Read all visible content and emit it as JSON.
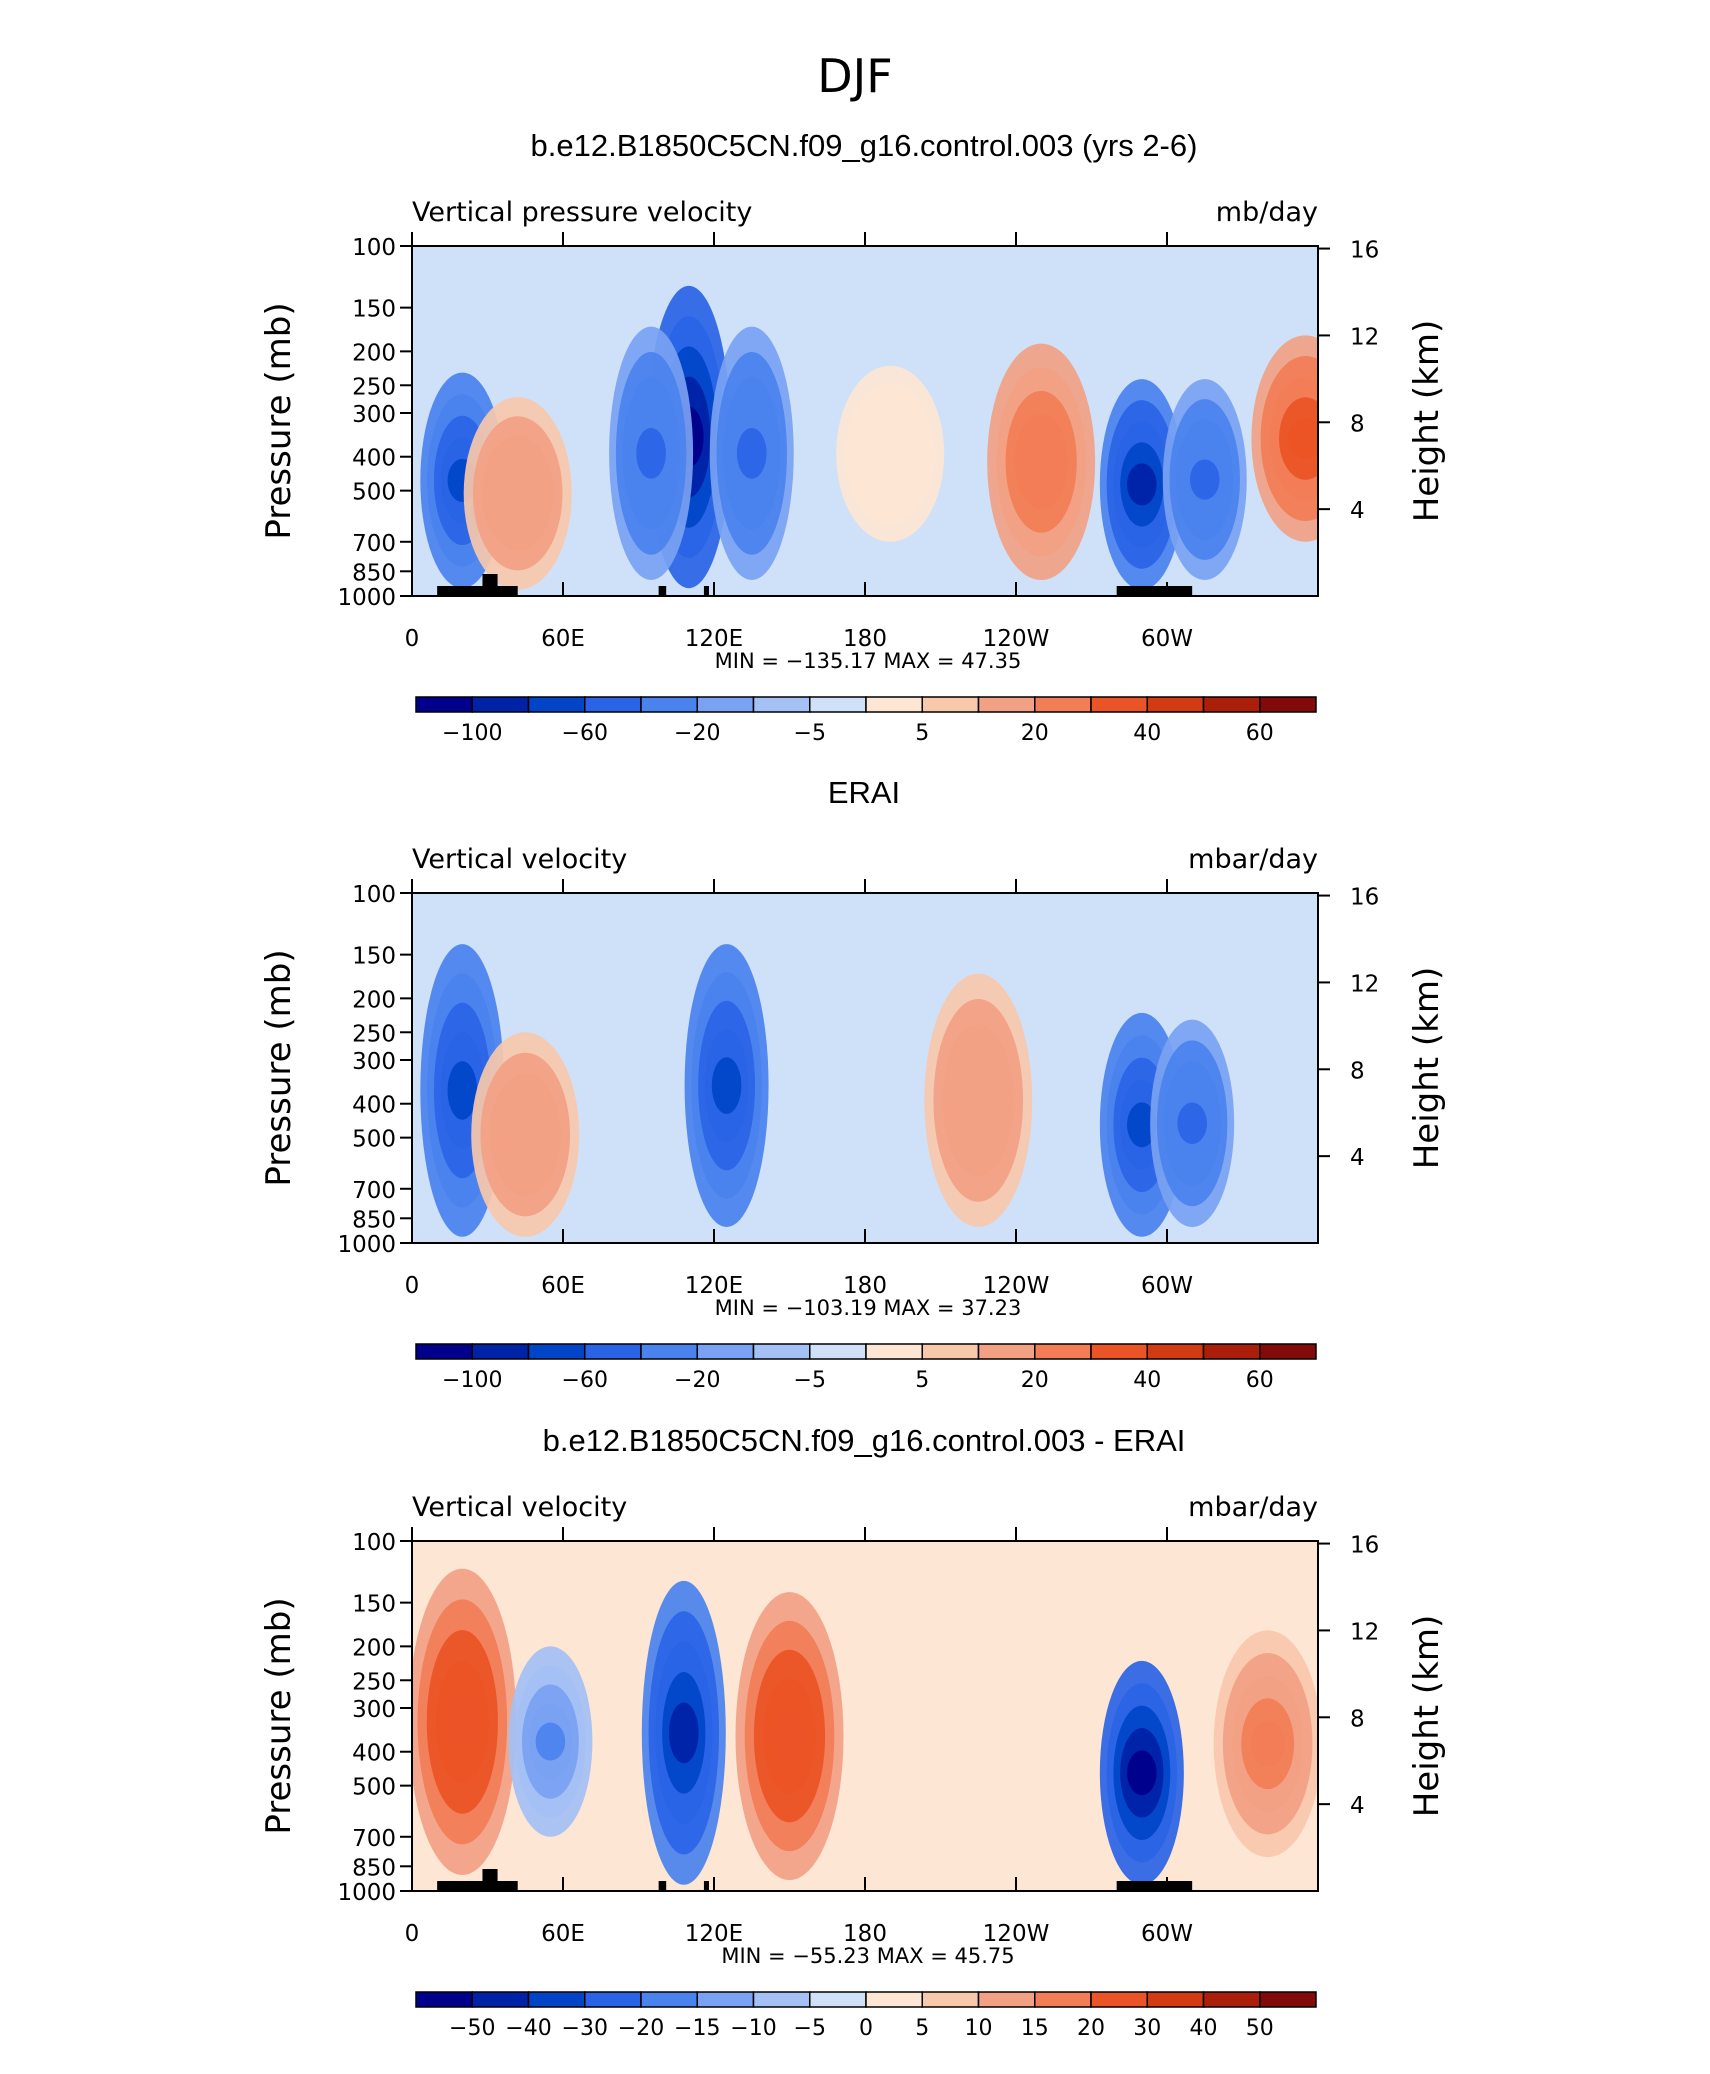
{
  "figure_title": "DJF",
  "panels": [
    {
      "title": "b.e12.B1850C5CN.f09_g16.control.003 (yrs 2-6)",
      "left_label": "Vertical pressure velocity",
      "right_label": "mb/day",
      "stats": "MIN = −135.17   MAX =   47.35",
      "colorbar_labels": [
        "−100",
        "−60",
        "−20",
        "−5",
        "5",
        "20",
        "40",
        "60"
      ],
      "label_boxes": [
        1,
        3,
        5,
        7,
        9,
        11,
        13,
        15
      ],
      "topo": true
    },
    {
      "title": "ERAI",
      "left_label": "Vertical velocity",
      "right_label": "mbar/day",
      "stats": "MIN = −103.19   MAX =   37.23",
      "colorbar_labels": [
        "−100",
        "−60",
        "−20",
        "−5",
        "5",
        "20",
        "40",
        "60"
      ],
      "label_boxes": [
        1,
        3,
        5,
        7,
        9,
        11,
        13,
        15
      ],
      "topo": false
    },
    {
      "title": "b.e12.B1850C5CN.f09_g16.control.003 - ERAI",
      "left_label": "Vertical velocity",
      "right_label": "mbar/day",
      "stats": "MIN = −55.23   MAX =   45.75",
      "colorbar_labels": [
        "−50",
        "−40",
        "−30",
        "−20",
        "−15",
        "−10",
        "−5",
        "0",
        "5",
        "10",
        "15",
        "20",
        "30",
        "40",
        "50"
      ],
      "label_boxes": [
        1,
        2,
        3,
        4,
        5,
        6,
        7,
        8,
        9,
        10,
        11,
        12,
        13,
        14,
        15
      ],
      "topo": true
    }
  ],
  "axis": {
    "y_left_label": "Pressure (mb)",
    "y_left_ticks": [
      100,
      150,
      200,
      250,
      300,
      400,
      500,
      700,
      850,
      1000
    ],
    "y_right_label": "Height (km)",
    "y_right_ticks": [
      16,
      12,
      8,
      4
    ],
    "x_ticks": [
      "0",
      "60E",
      "120E",
      "180",
      "120W",
      "60W"
    ]
  },
  "colors": {
    "palette": [
      "#00008c",
      "#0022a6",
      "#0044c8",
      "#2a64e6",
      "#4a82ee",
      "#7aa2f2",
      "#a4c0f4",
      "#cfe1f9",
      "#fde6d3",
      "#f8c8ab",
      "#f2a184",
      "#f27d56",
      "#eb5426",
      "#d23a12",
      "#aa1e0a",
      "#820a0a"
    ]
  },
  "chart_data": [
    {
      "type": "heatmap",
      "title": "b.e12.B1850C5CN.f09_g16.control.003 (yrs 2-6)",
      "variable": "Vertical pressure velocity",
      "units": "mb/day",
      "x_ticks": [
        "0",
        "60E",
        "120E",
        "180",
        "120W",
        "60W"
      ],
      "xlim": [
        0,
        360
      ],
      "y_axis": "Pressure (mb)",
      "ylim": [
        1000,
        100
      ],
      "y_scale": "log",
      "contour_levels": [
        -100,
        -80,
        -60,
        -40,
        -20,
        -10,
        -5,
        0,
        5,
        10,
        20,
        30,
        40,
        50,
        60
      ],
      "features": [
        {
          "lon": 20,
          "p_top": 230,
          "p_bot": 950,
          "value": -60
        },
        {
          "lon": 42,
          "p_top": 270,
          "p_bot": 960,
          "value": 20
        },
        {
          "lon": 110,
          "p_top": 130,
          "p_bot": 950,
          "value": -100
        },
        {
          "lon": 95,
          "p_top": 170,
          "p_bot": 900,
          "value": -40
        },
        {
          "lon": 135,
          "p_top": 170,
          "p_bot": 900,
          "value": -40
        },
        {
          "lon": 190,
          "p_top": 220,
          "p_bot": 700,
          "value": 5
        },
        {
          "lon": 250,
          "p_top": 190,
          "p_bot": 900,
          "value": 30
        },
        {
          "lon": 290,
          "p_top": 240,
          "p_bot": 960,
          "value": -80
        },
        {
          "lon": 315,
          "p_top": 240,
          "p_bot": 900,
          "value": -40
        },
        {
          "lon": 355,
          "p_top": 180,
          "p_bot": 700,
          "value": 40
        }
      ],
      "min": -135.17,
      "max": 47.35
    },
    {
      "type": "heatmap",
      "title": "ERAI",
      "variable": "Vertical velocity",
      "units": "mbar/day",
      "x_ticks": [
        "0",
        "60E",
        "120E",
        "180",
        "120W",
        "60W"
      ],
      "xlim": [
        0,
        360
      ],
      "y_axis": "Pressure (mb)",
      "ylim": [
        1000,
        100
      ],
      "y_scale": "log",
      "contour_levels": [
        -100,
        -80,
        -60,
        -40,
        -20,
        -10,
        -5,
        0,
        5,
        10,
        20,
        30,
        40,
        50,
        60
      ],
      "features": [
        {
          "lon": 20,
          "p_top": 140,
          "p_bot": 960,
          "value": -60
        },
        {
          "lon": 45,
          "p_top": 250,
          "p_bot": 960,
          "value": 20
        },
        {
          "lon": 125,
          "p_top": 140,
          "p_bot": 900,
          "value": -60
        },
        {
          "lon": 225,
          "p_top": 170,
          "p_bot": 900,
          "value": 20
        },
        {
          "lon": 290,
          "p_top": 220,
          "p_bot": 960,
          "value": -60
        },
        {
          "lon": 310,
          "p_top": 230,
          "p_bot": 900,
          "value": -40
        }
      ],
      "min": -103.19,
      "max": 37.23
    },
    {
      "type": "heatmap",
      "title": "b.e12.B1850C5CN.f09_g16.control.003 - ERAI",
      "variable": "Vertical velocity",
      "units": "mbar/day",
      "x_ticks": [
        "0",
        "60E",
        "120E",
        "180",
        "120W",
        "60W"
      ],
      "xlim": [
        0,
        360
      ],
      "y_axis": "Pressure (mb)",
      "ylim": [
        1000,
        100
      ],
      "y_scale": "log",
      "contour_levels": [
        -50,
        -40,
        -30,
        -20,
        -15,
        -10,
        -5,
        0,
        5,
        10,
        15,
        20,
        30,
        40,
        50
      ],
      "features": [
        {
          "lon": 20,
          "p_top": 120,
          "p_bot": 900,
          "value": 30
        },
        {
          "lon": 55,
          "p_top": 200,
          "p_bot": 700,
          "value": -15
        },
        {
          "lon": 108,
          "p_top": 130,
          "p_bot": 960,
          "value": -40
        },
        {
          "lon": 150,
          "p_top": 140,
          "p_bot": 930,
          "value": 30
        },
        {
          "lon": 290,
          "p_top": 220,
          "p_bot": 960,
          "value": -50
        },
        {
          "lon": 340,
          "p_top": 180,
          "p_bot": 800,
          "value": 20
        }
      ],
      "min": -55.23,
      "max": 45.75
    }
  ]
}
